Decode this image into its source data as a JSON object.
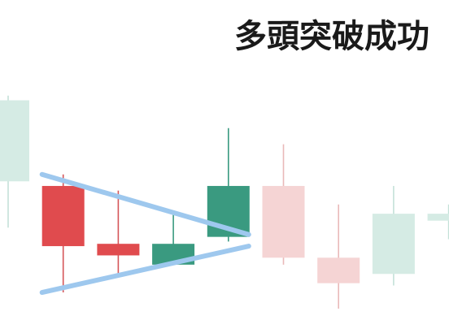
{
  "chart_data": {
    "type": "candlestick",
    "title": "多頭突破成功",
    "xlabel": "",
    "ylabel": "",
    "grid": false,
    "ylim": [
      0,
      100
    ],
    "colors": {
      "bull": "#3a9a80",
      "bear": "#e04b4e",
      "bull_faded": "#d5ebe4",
      "bear_faded": "#f5d4d4",
      "wick_bull": "#3a9a80",
      "wick_bear": "#d55558",
      "wick_faded": "#eab9b9",
      "wick_faded_bull": "#c4e1d8",
      "triangle": "#9ec8ee"
    },
    "candles": [
      {
        "open": 55,
        "high": 92,
        "low": 35,
        "close": 90,
        "emphasis": "faded"
      },
      {
        "open": 53,
        "high": 58,
        "low": 7,
        "close": 27,
        "emphasis": "strong"
      },
      {
        "open": 28,
        "high": 51,
        "low": 15,
        "close": 23,
        "emphasis": "strong"
      },
      {
        "open": 19,
        "high": 41,
        "low": 19,
        "close": 28,
        "emphasis": "strong"
      },
      {
        "open": 31,
        "high": 78,
        "low": 29,
        "close": 53,
        "emphasis": "strong"
      },
      {
        "open": 53,
        "high": 71,
        "low": 19,
        "close": 22,
        "emphasis": "faded"
      },
      {
        "open": 22,
        "high": 45,
        "low": 0,
        "close": 11,
        "emphasis": "faded"
      },
      {
        "open": 15,
        "high": 53,
        "low": 10,
        "close": 41,
        "emphasis": "faded"
      },
      {
        "open": 38,
        "high": 45,
        "low": 30,
        "close": 41,
        "emphasis": "faded"
      }
    ],
    "triangle": {
      "upper": {
        "from": {
          "candle": 1,
          "price": 58
        },
        "to": {
          "candle": 4,
          "price": 32
        }
      },
      "lower": {
        "from": {
          "candle": 1,
          "price": 7
        },
        "to": {
          "candle": 4,
          "price": 27
        }
      }
    }
  }
}
